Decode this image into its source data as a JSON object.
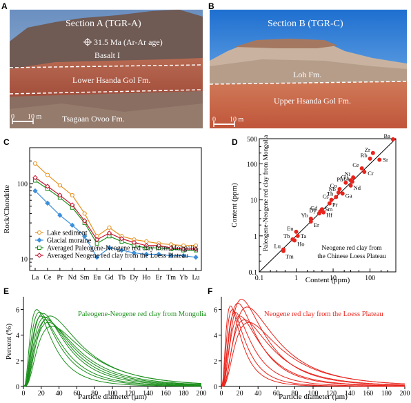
{
  "panels": {
    "A": {
      "letter": "A",
      "title": "Section A (TGR-A)",
      "age": "31.5 Ma (Ar-Ar age)",
      "labels": [
        "Basalt I",
        "Lower Hsanda Gol Fm.",
        "Tsagaan Ovoo Fm."
      ],
      "scale": [
        "0",
        "10 m"
      ]
    },
    "B": {
      "letter": "B",
      "title": "Section B (TGR-C)",
      "labels": [
        "Loh Fm.",
        "Upper Hsanda Gol Fm."
      ],
      "scale": [
        "0",
        "10 m"
      ]
    },
    "C": {
      "letter": "C"
    },
    "D": {
      "letter": "D"
    },
    "E": {
      "letter": "E"
    },
    "F": {
      "letter": "F"
    }
  },
  "colors": {
    "lake": "#e8901c",
    "glacial": "#3d8fd8",
    "mongolia": "#1a8f1a",
    "loess": "#c8102e",
    "red": "#e8241c"
  },
  "chart_data": [
    {
      "id": "C",
      "type": "line",
      "yscale": "log",
      "ylim": [
        7,
        300
      ],
      "ylabel": "Rock/Chondrite",
      "yticks": [
        "10",
        "100"
      ],
      "categories": [
        "La",
        "Ce",
        "Pr",
        "Nd",
        "Sm",
        "Eu",
        "Gd",
        "Tb",
        "Dy",
        "Ho",
        "Er",
        "Tm",
        "Yb",
        "Lu"
      ],
      "legend_position": "bottom-left",
      "series": [
        {
          "name": "Lake sediment",
          "values": [
            185,
            130,
            95,
            70,
            40,
            20,
            26,
            20,
            18,
            17,
            16,
            15.5,
            15,
            15
          ]
        },
        {
          "name": "Glacial moraine",
          "values": [
            80,
            55,
            38,
            28,
            20,
            10.5,
            14,
            13,
            12,
            11.5,
            11.5,
            11,
            11,
            10.5
          ]
        },
        {
          "name": "Averaged Paleogene-Neogene red clay from Mongolia",
          "values": [
            110,
            85,
            65,
            48,
            30,
            16,
            20,
            17,
            15,
            14,
            14,
            13.5,
            13,
            13
          ]
        },
        {
          "name": "Averaged Neogene red clay from the Loess Plateau",
          "values": [
            120,
            92,
            70,
            52,
            32,
            18,
            22,
            18.5,
            16.5,
            15,
            15,
            14,
            13.5,
            13.5
          ]
        }
      ]
    },
    {
      "id": "D",
      "type": "scatter",
      "xscale": "log",
      "yscale": "log",
      "xlim": [
        0.1,
        500
      ],
      "ylim": [
        0.1,
        500
      ],
      "xlabel": "Content (ppm)",
      "ylabel": "Content (ppm)",
      "xticks": [
        "0.1",
        "1",
        "10",
        "100"
      ],
      "yticks": [
        "0.1",
        "1",
        "10",
        "100",
        "500"
      ],
      "ylabel_note": "Paleogene-Neogene red clay from Mongolia",
      "xlabel_note": "Neogene red clay from the Chinese Loess Plateau",
      "points": [
        {
          "label": "Ba",
          "x": 420,
          "y": 480
        },
        {
          "label": "Zr",
          "x": 120,
          "y": 200
        },
        {
          "label": "Rb",
          "x": 100,
          "y": 140
        },
        {
          "label": "Sr",
          "x": 180,
          "y": 130
        },
        {
          "label": "Ce",
          "x": 60,
          "y": 75
        },
        {
          "label": "Cr",
          "x": 70,
          "y": 60
        },
        {
          "label": "Ni",
          "x": 35,
          "y": 42
        },
        {
          "label": "Cu",
          "x": 30,
          "y": 35
        },
        {
          "label": "La",
          "x": 33,
          "y": 32
        },
        {
          "label": "Pb",
          "x": 22,
          "y": 30
        },
        {
          "label": "Nd",
          "x": 30,
          "y": 25
        },
        {
          "label": "Co",
          "x": 15,
          "y": 20
        },
        {
          "label": "Nb",
          "x": 14,
          "y": 16
        },
        {
          "label": "Ga",
          "x": 18,
          "y": 15
        },
        {
          "label": "Th",
          "x": 12,
          "y": 12
        },
        {
          "label": "Cs",
          "x": 9,
          "y": 10
        },
        {
          "label": "Pr",
          "x": 8,
          "y": 8
        },
        {
          "label": "Sm",
          "x": 5,
          "y": 5.5
        },
        {
          "label": "Gd",
          "x": 4.5,
          "y": 4.8
        },
        {
          "label": "Dy",
          "x": 4.2,
          "y": 4.2
        },
        {
          "label": "Hf",
          "x": 5.5,
          "y": 4.5
        },
        {
          "label": "Yb",
          "x": 2.5,
          "y": 3
        },
        {
          "label": "Er",
          "x": 2.5,
          "y": 2.5
        },
        {
          "label": "Eu",
          "x": 1,
          "y": 1.3
        },
        {
          "label": "Tb",
          "x": 0.8,
          "y": 0.8
        },
        {
          "label": "Ta",
          "x": 1.1,
          "y": 1
        },
        {
          "label": "Ho",
          "x": 0.9,
          "y": 0.75
        },
        {
          "label": "Lu",
          "x": 0.45,
          "y": 0.42
        },
        {
          "label": "Tm",
          "x": 0.45,
          "y": 0.38
        }
      ]
    },
    {
      "id": "E",
      "type": "line",
      "xlim": [
        0,
        200
      ],
      "ylim": [
        0,
        7
      ],
      "xlabel": "Particle diameter (µm)",
      "ylabel": "Percent (%)",
      "xticks": [
        "0",
        "20",
        "40",
        "60",
        "80",
        "100",
        "120",
        "140",
        "160",
        "180",
        "200"
      ],
      "yticks": [
        "0",
        "2",
        "4",
        "6"
      ],
      "annotation": "Paleogene-Neogene red clay from Mongolia",
      "curves": [
        {
          "peak_x": 15,
          "peak_y": 6.0
        },
        {
          "peak_x": 18,
          "peak_y": 5.8
        },
        {
          "peak_x": 20,
          "peak_y": 5.5
        },
        {
          "peak_x": 22,
          "peak_y": 5.7
        },
        {
          "peak_x": 24,
          "peak_y": 5.4
        },
        {
          "peak_x": 26,
          "peak_y": 5.2
        },
        {
          "peak_x": 28,
          "peak_y": 5.0
        },
        {
          "peak_x": 30,
          "peak_y": 5.5
        },
        {
          "peak_x": 32,
          "peak_y": 4.7
        }
      ]
    },
    {
      "id": "F",
      "type": "line",
      "xlim": [
        0,
        200
      ],
      "ylim": [
        0,
        7
      ],
      "xlabel": "Particle diameter (µm)",
      "ylabel": "Percent (%)",
      "xticks": [
        "0",
        "20",
        "40",
        "60",
        "80",
        "100",
        "120",
        "140",
        "160",
        "180",
        "200"
      ],
      "yticks": [
        "0",
        "2",
        "4",
        "6"
      ],
      "annotation": "Neogene red clay from the Loess Plateau",
      "curves": [
        {
          "peak_x": 10,
          "peak_y": 6.3
        },
        {
          "peak_x": 12,
          "peak_y": 6.0
        },
        {
          "peak_x": 15,
          "peak_y": 5.8
        },
        {
          "peak_x": 18,
          "peak_y": 6.5
        },
        {
          "peak_x": 20,
          "peak_y": 5.5
        },
        {
          "peak_x": 22,
          "peak_y": 6.8
        },
        {
          "peak_x": 25,
          "peak_y": 5.2
        },
        {
          "peak_x": 28,
          "peak_y": 6.2
        },
        {
          "peak_x": 30,
          "peak_y": 5.0
        }
      ]
    }
  ]
}
